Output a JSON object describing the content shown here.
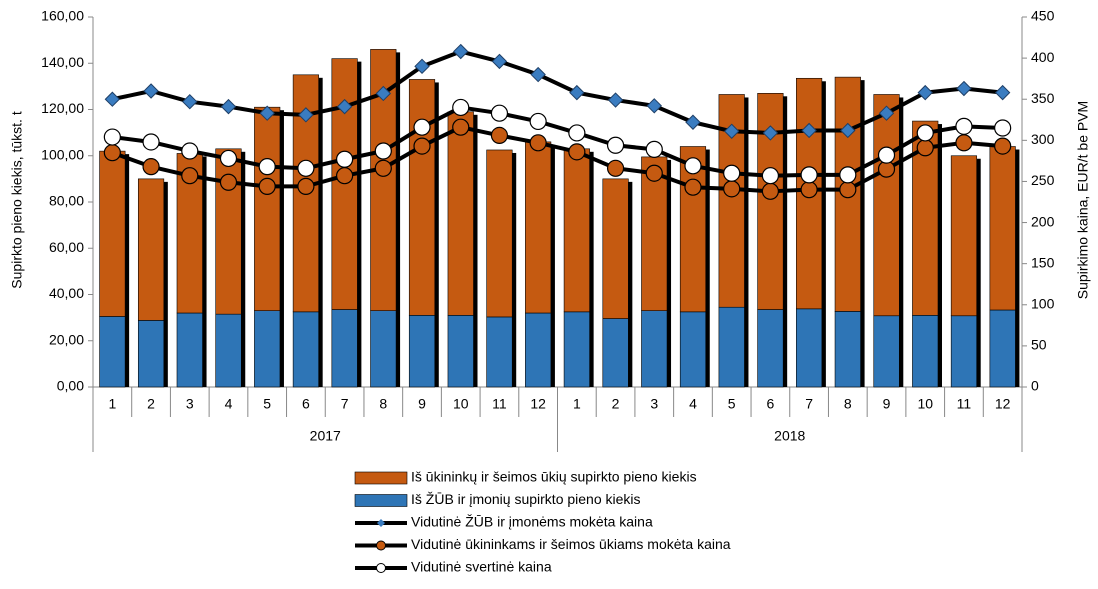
{
  "chart_data": {
    "type": "bar",
    "ylabel": "Supirkto pieno kiekis, tūkst. t",
    "y2label": "Supirkimo kaina, EUR/t be PVM",
    "categories": [
      "1",
      "2",
      "3",
      "4",
      "5",
      "6",
      "7",
      "8",
      "9",
      "10",
      "11",
      "12",
      "1",
      "2",
      "3",
      "4",
      "5",
      "6",
      "7",
      "8",
      "9",
      "10",
      "11",
      "12"
    ],
    "groups": [
      "2017",
      "2018"
    ],
    "ylim": [
      0,
      160
    ],
    "yticks": [
      {
        "value": 0,
        "label": "0,00"
      },
      {
        "value": 20,
        "label": "20,00"
      },
      {
        "value": 40,
        "label": "40,00"
      },
      {
        "value": 60,
        "label": "60,00"
      },
      {
        "value": 80,
        "label": "80,00"
      },
      {
        "value": 100,
        "label": "100,00"
      },
      {
        "value": 120,
        "label": "120,00"
      },
      {
        "value": 140,
        "label": "140,00"
      },
      {
        "value": 160,
        "label": "160,00"
      }
    ],
    "y2lim": [
      0,
      450
    ],
    "y2ticks": [
      0,
      50,
      100,
      150,
      200,
      250,
      300,
      350,
      400,
      450
    ],
    "series": [
      {
        "name": "Iš ūkininkų ir šeimos ūkių supirkto pieno kiekis",
        "kind": "bar",
        "color": "#c55a11",
        "values": [
          71.5,
          61.2,
          69,
          71.5,
          88,
          102.5,
          108.5,
          113,
          102,
          88,
          72.2,
          74,
          70.5,
          60.4,
          66.5,
          71.5,
          92,
          93.5,
          99.7,
          101.3,
          95.7,
          84,
          69.2,
          70.7
        ]
      },
      {
        "name": "Iš ŽŪB ir įmonių supirkto pieno kiekis",
        "kind": "bar",
        "color": "#2e75b6",
        "values": [
          30.5,
          28.8,
          32,
          31.5,
          33,
          32.5,
          33.5,
          33,
          31,
          31,
          30.3,
          32,
          32.5,
          29.6,
          33,
          32.5,
          34.5,
          33.5,
          33.8,
          32.7,
          30.8,
          31,
          30.8,
          33.3
        ]
      },
      {
        "name": "Vidutinė ŽŪB ir įmonėms mokėta kaina",
        "kind": "line",
        "axis": "y2",
        "marker": "diamond",
        "color": "#3a7cc0",
        "values": [
          350,
          360,
          347,
          341,
          333,
          331,
          341,
          357,
          390,
          408,
          396,
          380,
          358,
          349,
          342,
          322,
          311,
          309,
          312,
          312,
          333,
          358,
          363,
          358
        ]
      },
      {
        "name": "Vidutinė ūkininkams ir šeimos ūkiams mokėta kaina",
        "kind": "line",
        "axis": "y2",
        "marker": "circle",
        "color": "#c55a11",
        "values": [
          285,
          268,
          257,
          249,
          244,
          244,
          257,
          266,
          293,
          316,
          306,
          297,
          286,
          266,
          260,
          243,
          241,
          238,
          240,
          240,
          265,
          291,
          297,
          293
        ]
      },
      {
        "name": "Vidutinė svertinė kaina",
        "kind": "line",
        "axis": "y2",
        "marker": "circle",
        "color": "#ffffff",
        "values": [
          304,
          298,
          287,
          278,
          268,
          266,
          277,
          287,
          316,
          340,
          333,
          323,
          309,
          294,
          289,
          269,
          260,
          257,
          258,
          258,
          282,
          309,
          317,
          315
        ]
      }
    ]
  }
}
